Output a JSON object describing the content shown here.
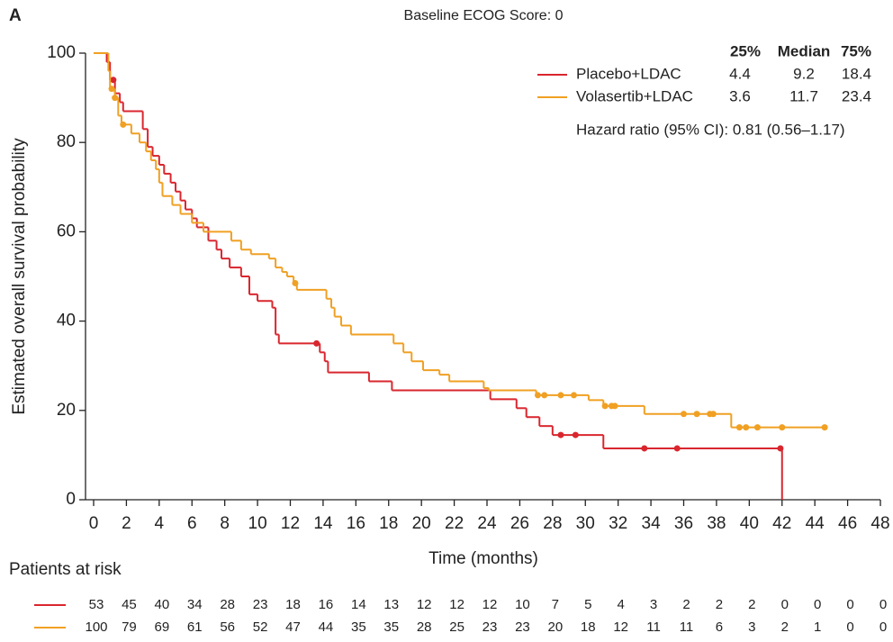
{
  "chart_data": {
    "type": "km",
    "panel_label": "A",
    "title": "Baseline ECOG Score: 0",
    "x_label": "Time (months)",
    "y_label": "Estimated overall survival probability",
    "xlim": [
      0,
      48
    ],
    "ylim": [
      0,
      100
    ],
    "xticks": [
      0,
      2,
      4,
      6,
      8,
      10,
      12,
      14,
      16,
      18,
      20,
      22,
      24,
      26,
      28,
      30,
      32,
      34,
      36,
      38,
      40,
      42,
      44,
      46,
      48
    ],
    "yticks": [
      0,
      20,
      40,
      60,
      80,
      100
    ],
    "stats_header": [
      "25%",
      "Median",
      "75%"
    ],
    "hazard_text": "Hazard ratio (95% CI): 0.81 (0.56–1.17)",
    "series": [
      {
        "name": "Placebo+LDAC",
        "color": "#d9262e",
        "x": [
          0,
          0.8,
          1.0,
          1.3,
          1.6,
          1.8,
          3.0,
          3.3,
          3.6,
          4.0,
          4.3,
          4.7,
          5.0,
          5.3,
          5.6,
          6.0,
          6.3,
          7.0,
          7.5,
          7.8,
          8.3,
          9.0,
          9.5,
          10.0,
          10.9,
          11.1,
          11.3,
          13.8,
          14.1,
          14.3,
          16.8,
          18.2,
          24.2,
          25.8,
          26.4,
          27.2,
          28.0,
          31.1,
          42.0
        ],
        "values": [
          100,
          98,
          94,
          91,
          89,
          87,
          83,
          79,
          77,
          75,
          73,
          71,
          69,
          67,
          65,
          63,
          61,
          58,
          56,
          54,
          52,
          50,
          46,
          44.5,
          43,
          37,
          35,
          33,
          31,
          28.5,
          26.5,
          24.5,
          22.5,
          20.5,
          18.5,
          16.5,
          14.5,
          11.5,
          0
        ],
        "censor_x": [
          1.2,
          13.6,
          28.5,
          29.4,
          33.6,
          35.6,
          41.9
        ],
        "censor_values": [
          94,
          35,
          14.5,
          14.5,
          11.5,
          11.5,
          11.5
        ],
        "stats": [
          4.4,
          9.2,
          18.4
        ],
        "at_risk": [
          53,
          45,
          40,
          34,
          28,
          23,
          18,
          16,
          14,
          13,
          12,
          12,
          12,
          10,
          7,
          5,
          4,
          3,
          2,
          2,
          2,
          0,
          0,
          0,
          0
        ]
      },
      {
        "name": "Volasertib+LDAC",
        "color": "#f0a023",
        "x": [
          0,
          0.9,
          1.0,
          1.3,
          1.5,
          1.7,
          2.3,
          2.8,
          3.2,
          3.5,
          3.8,
          4.0,
          4.2,
          4.8,
          5.3,
          6.0,
          6.7,
          8.4,
          9.0,
          9.6,
          10.7,
          11.1,
          11.5,
          11.8,
          12.2,
          12.4,
          14.2,
          14.5,
          14.7,
          15.1,
          15.7,
          18.3,
          18.9,
          19.4,
          20.1,
          21.1,
          21.7,
          23.8,
          24.1,
          27.0,
          30.2,
          31.1,
          33.6,
          38.9,
          44.6
        ],
        "values": [
          100,
          96,
          92,
          90,
          86,
          84,
          82,
          80,
          78,
          76,
          74,
          71,
          68,
          66,
          64,
          62,
          60,
          58,
          56,
          55,
          54,
          52,
          51,
          50,
          48.5,
          47,
          45,
          43,
          41,
          39,
          37,
          35,
          33,
          31,
          29,
          28,
          26.5,
          25,
          24.5,
          23.4,
          22.3,
          21,
          19.2,
          16.2,
          16.2
        ],
        "censor_x": [
          1.1,
          1.3,
          1.8,
          12.3,
          27.1,
          27.5,
          28.5,
          29.3,
          31.2,
          31.6,
          31.8,
          36.0,
          36.8,
          37.6,
          37.8,
          39.4,
          39.8,
          40.5,
          42.0,
          44.6
        ],
        "censor_values": [
          92,
          90,
          84,
          48.5,
          23.4,
          23.4,
          23.4,
          23.4,
          21,
          21,
          21,
          19.2,
          19.2,
          19.2,
          19.2,
          16.2,
          16.2,
          16.2,
          16.2,
          16.2
        ],
        "stats": [
          3.6,
          11.7,
          23.4
        ],
        "at_risk": [
          100,
          79,
          69,
          61,
          56,
          52,
          47,
          44,
          35,
          35,
          28,
          25,
          23,
          23,
          20,
          18,
          12,
          11,
          11,
          6,
          3,
          2,
          1,
          0,
          0
        ]
      }
    ],
    "risk_title": "Patients at risk"
  }
}
